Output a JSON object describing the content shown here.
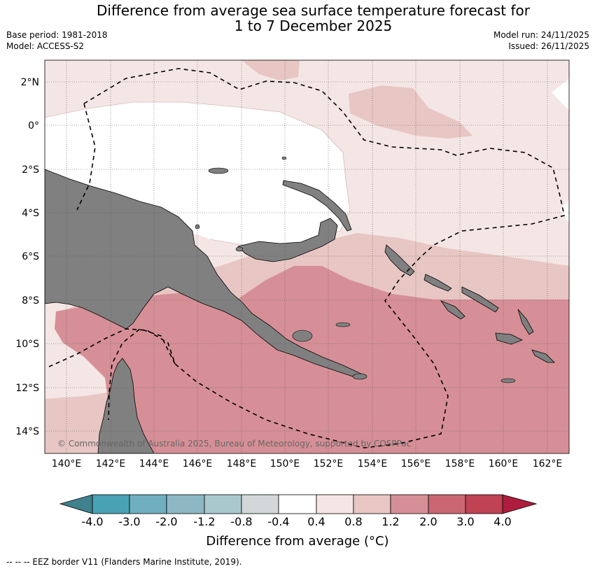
{
  "header": {
    "title_line1": "Difference from average sea surface temperature forecast for",
    "title_line2": "1 to 7 December 2025",
    "base_period": "Base period: 1981-2018",
    "model": "Model: ACCESS-S2",
    "model_run": "Model run: 24/11/2025",
    "issued": "Issued: 26/11/2025"
  },
  "map": {
    "lat_labels": [
      "2°N",
      "0°",
      "2°S",
      "4°S",
      "6°S",
      "8°S",
      "10°S",
      "12°S",
      "14°S"
    ],
    "lon_labels": [
      "140°E",
      "142°E",
      "144°E",
      "146°E",
      "148°E",
      "150°E",
      "152°E",
      "154°E",
      "156°E",
      "158°E",
      "160°E",
      "162°E"
    ],
    "copyright": "© Commonwealth of Australia 2025, Bureau of Meteorology, supported by COSPPac",
    "colors": {
      "land": "#808080",
      "band_0_4": "#f4e6e4",
      "band_0_8": "#e8c6c3",
      "band_1_2": "#d68f96",
      "neutral": "#ffffff"
    }
  },
  "colorbar": {
    "title": "Difference from average (°C)",
    "labels": [
      "-4.0",
      "-3.0",
      "-2.0",
      "-1.2",
      "-0.8",
      "-0.4",
      "0.4",
      "0.8",
      "1.2",
      "2.0",
      "3.0",
      "4.0"
    ],
    "colors": [
      "#3f818c",
      "#48a2b3",
      "#70afbf",
      "#8cb7c3",
      "#a9c8cd",
      "#d2d8d9",
      "#ffffff",
      "#f4e6e4",
      "#e8c6c3",
      "#d68f96",
      "#cb6772",
      "#bf4352",
      "#ae1c3e"
    ]
  },
  "footnote": "-- -- -- EEZ border V11 (Flanders Marine Institute, 2019)."
}
